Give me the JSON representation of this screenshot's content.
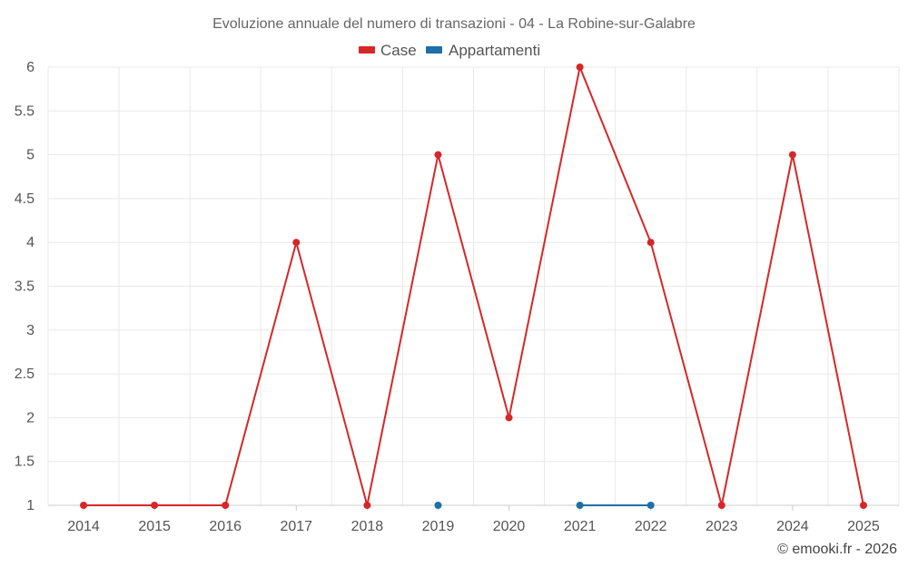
{
  "chart_data": {
    "type": "line",
    "title": "Evoluzione annuale del numero di transazioni - 04 - La Robine-sur-Galabre",
    "xlabel": "",
    "ylabel": "",
    "categories": [
      "2014",
      "2015",
      "2016",
      "2017",
      "2018",
      "2019",
      "2020",
      "2021",
      "2022",
      "2023",
      "2024",
      "2025"
    ],
    "ylim": [
      1,
      6
    ],
    "yticks": [
      "1",
      "1.5",
      "2",
      "2.5",
      "3",
      "3.5",
      "4",
      "4.5",
      "5",
      "5.5",
      "6"
    ],
    "grid": true,
    "legend_position": "top-center",
    "series": [
      {
        "name": "Case",
        "color": "#d62728",
        "values": [
          1,
          1,
          1,
          4,
          1,
          5,
          2,
          6,
          4,
          1,
          5,
          1
        ]
      },
      {
        "name": "Appartamenti",
        "color": "#1f6ea8",
        "values": [
          null,
          null,
          null,
          null,
          null,
          1,
          null,
          1,
          1,
          null,
          null,
          null
        ]
      }
    ]
  },
  "credit": "© emooki.fr - 2026"
}
